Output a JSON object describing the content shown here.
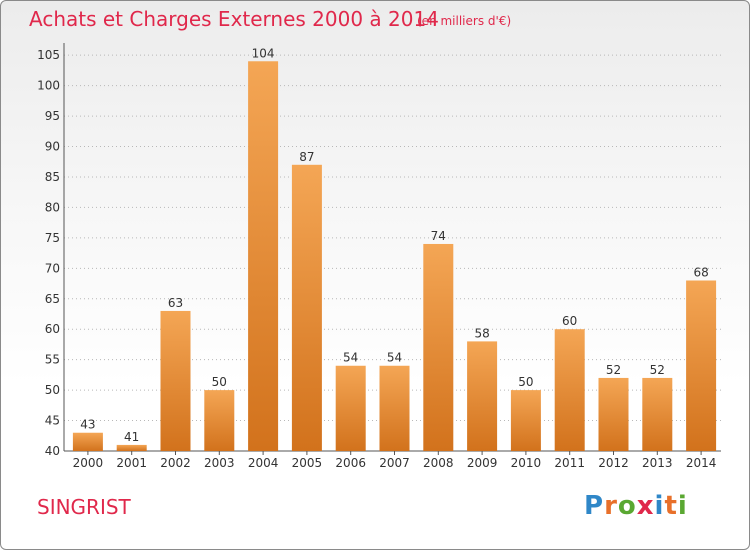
{
  "title": "Achats et Charges Externes 2000 à 2014",
  "unit": "(en milliers d'€)",
  "commune": "SINGRIST",
  "brand": {
    "letters": [
      "P",
      "r",
      "o",
      "x",
      "i",
      "t",
      "i"
    ],
    "colors": [
      "#2f87c8",
      "#e8702a",
      "#5aa832",
      "#e0284b",
      "#2f87c8",
      "#e8702a",
      "#5aa832"
    ]
  },
  "colors": {
    "title": "#e0284b",
    "bar_light": "#f4a655",
    "bar_dark": "#d2721c",
    "grid": "#b8b8b8"
  },
  "chart_data": {
    "type": "bar",
    "categories": [
      "2000",
      "2001",
      "2002",
      "2003",
      "2004",
      "2005",
      "2006",
      "2007",
      "2008",
      "2009",
      "2010",
      "2011",
      "2012",
      "2013",
      "2014"
    ],
    "values": [
      43,
      41,
      63,
      50,
      104,
      87,
      54,
      54,
      74,
      58,
      50,
      60,
      52,
      52,
      68
    ],
    "yticks": [
      40,
      45,
      50,
      55,
      60,
      65,
      70,
      75,
      80,
      85,
      90,
      95,
      100,
      105
    ],
    "ylim": [
      40,
      107
    ],
    "grid": true,
    "legend": "none"
  }
}
